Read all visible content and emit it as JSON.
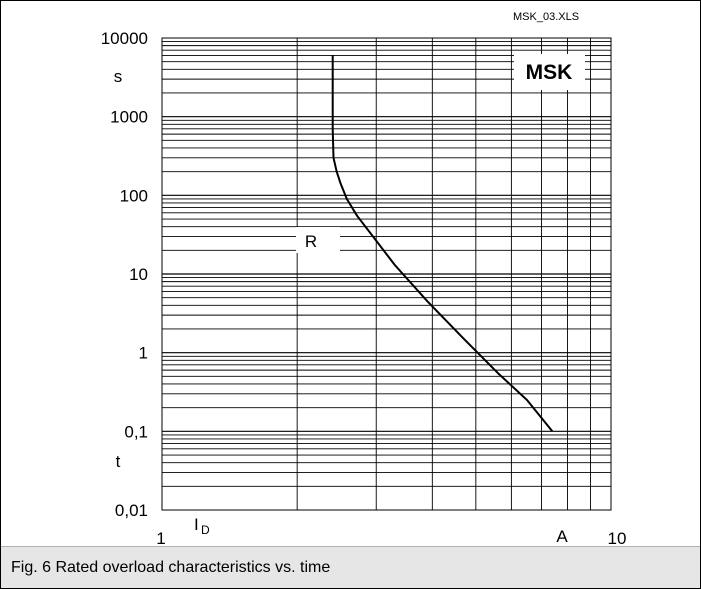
{
  "file_label": "MSK_03.XLS",
  "badge": "MSK",
  "caption": "Fig. 6 Rated overload characteristics vs. time",
  "chart_data": {
    "type": "line",
    "x_scale": "log",
    "y_scale": "log",
    "xlim": [
      1,
      10
    ],
    "ylim": [
      0.01,
      10000
    ],
    "x_tick_labels": [
      "1",
      "10"
    ],
    "x_tick_values": [
      1,
      10
    ],
    "y_tick_labels": [
      "10000",
      "1000",
      "100",
      "10",
      "1",
      "0,1",
      "0,01"
    ],
    "y_tick_values": [
      10000,
      1000,
      100,
      10,
      1,
      0.1,
      0.01
    ],
    "ylabel": [
      "s",
      "t"
    ],
    "xlabel": [
      "I_D",
      "A"
    ],
    "grid": true,
    "series": [
      {
        "name": "R",
        "color": "#000000",
        "x": [
          2.4,
          2.4,
          2.4,
          2.41,
          2.45,
          2.5,
          2.58,
          2.72,
          2.95,
          3.3,
          3.9,
          4.7,
          5.6,
          6.5,
          7.4
        ],
        "y": [
          6000,
          2000,
          700,
          300,
          200,
          140,
          90,
          55,
          30,
          13,
          4.5,
          1.5,
          0.55,
          0.25,
          0.1
        ]
      }
    ]
  }
}
